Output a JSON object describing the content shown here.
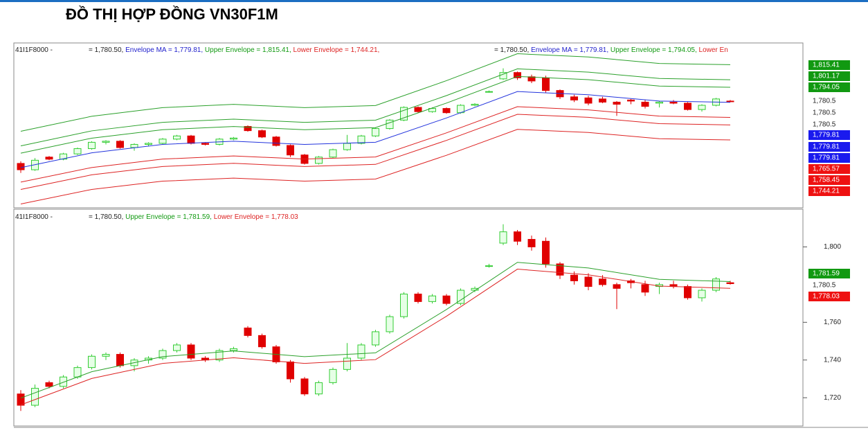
{
  "title": "ĐỒ THỊ HỢP ĐỒNG VN30F1M",
  "chart_data": [
    {
      "type": "candlestick",
      "header": [
        {
          "text": "41I1F8000 -",
          "color": "#222222"
        },
        {
          "text": "= 1,780.50, ",
          "color": "#222222"
        },
        {
          "text": "Envelope MA = 1,779.81, ",
          "color": "#2222cc"
        },
        {
          "text": "Upper Envelope = 1,815.41, ",
          "color": "#119911"
        },
        {
          "text": "Lower Envelope = 1,744.21,",
          "color": "#dd2222"
        },
        {
          "text": "= 1,780.50, ",
          "color": "#222222"
        },
        {
          "text": "Envelope MA = 1,779.81, ",
          "color": "#2222cc"
        },
        {
          "text": "Upper Envelope = 1,794.05, ",
          "color": "#119911"
        },
        {
          "text": "Lower En",
          "color": "#dd2222"
        }
      ],
      "ylim": [
        1680,
        1836
      ],
      "series": [
        {
          "color": "#2aa02a",
          "x": [
            0,
            5,
            10,
            15,
            20,
            25,
            30,
            35,
            40,
            45,
            50
          ],
          "values": [
            1752.4,
            1766.6,
            1774.8,
            1777.9,
            1774.8,
            1776.8,
            1800.3,
            1825.8,
            1822.7,
            1816.6,
            1815.41
          ]
        },
        {
          "color": "#2aa02a",
          "x": [
            0,
            5,
            10,
            15,
            20,
            25,
            30,
            35,
            40,
            45,
            50
          ],
          "values": [
            1738.6,
            1752.8,
            1760.9,
            1763.9,
            1760.9,
            1762.9,
            1786.2,
            1811.5,
            1808.4,
            1802.4,
            1801.17
          ]
        },
        {
          "color": "#2aa02a",
          "x": [
            0,
            5,
            10,
            15,
            20,
            25,
            30,
            35,
            40,
            45,
            50
          ],
          "values": [
            1731.7,
            1745.9,
            1753.9,
            1756.9,
            1753.9,
            1755.9,
            1779.1,
            1804.3,
            1801.3,
            1795.2,
            1794.05
          ]
        },
        {
          "color": "#2233dd",
          "x": [
            0,
            5,
            10,
            15,
            20,
            25,
            30,
            35,
            40,
            45,
            50
          ],
          "values": [
            1718,
            1732,
            1740,
            1743,
            1740,
            1742,
            1765,
            1790,
            1787,
            1781,
            1779.81
          ]
        },
        {
          "color": "#dd2222",
          "x": [
            0,
            5,
            10,
            15,
            20,
            25,
            30,
            35,
            40,
            45,
            50
          ],
          "values": [
            1704.3,
            1718.1,
            1726.1,
            1729.1,
            1726.1,
            1728.1,
            1750.9,
            1775.7,
            1772.7,
            1766.8,
            1765.57
          ]
        },
        {
          "color": "#dd2222",
          "x": [
            0,
            5,
            10,
            15,
            20,
            25,
            30,
            35,
            40,
            45,
            50
          ],
          "values": [
            1697.4,
            1711.2,
            1719.1,
            1722.1,
            1719.1,
            1721.1,
            1743.8,
            1768.5,
            1765.6,
            1759.6,
            1758.45
          ]
        },
        {
          "color": "#dd2222",
          "x": [
            0,
            5,
            10,
            15,
            20,
            25,
            30,
            35,
            40,
            45,
            50
          ],
          "values": [
            1683.6,
            1697.4,
            1705.2,
            1708.1,
            1705.2,
            1707.2,
            1729.7,
            1754.2,
            1751.3,
            1745.4,
            1744.21
          ]
        }
      ],
      "price_labels": [
        {
          "text": "1,815.41",
          "color": "#119911"
        },
        {
          "text": "1,801.17",
          "color": "#119911"
        },
        {
          "text": "1,794.05",
          "color": "#119911"
        },
        {
          "text": "1,780.5",
          "color": ""
        },
        {
          "text": "1,780.5",
          "color": ""
        },
        {
          "text": "1,780.5",
          "color": ""
        },
        {
          "text": "1,779.81",
          "color": "#1a1aee"
        },
        {
          "text": "1,779.81",
          "color": "#1a1aee"
        },
        {
          "text": "1,779.81",
          "color": "#1a1aee"
        },
        {
          "text": "1,765.57",
          "color": "#ee1111"
        },
        {
          "text": "1,758.45",
          "color": "#ee1111"
        },
        {
          "text": "1,744.21",
          "color": "#ee1111"
        }
      ]
    },
    {
      "type": "candlestick",
      "header": [
        {
          "text": "41I1F8000 -",
          "color": "#222222"
        },
        {
          "text": "= 1,780.50, ",
          "color": "#222222"
        },
        {
          "text": "Upper Envelope = 1,781.59, ",
          "color": "#119911"
        },
        {
          "text": "Lower Envelope = 1,778.03",
          "color": "#dd2222"
        }
      ],
      "ylim": [
        1705,
        1820
      ],
      "yticks": [
        {
          "value": 1720,
          "label": "1,720"
        },
        {
          "value": 1740,
          "label": "1,740"
        },
        {
          "value": 1760,
          "label": "1,760"
        },
        {
          "value": 1800,
          "label": "1,800"
        }
      ],
      "up_color": "#33cc33",
      "down_color": "#e00000",
      "open": [
        1722,
        1716,
        1728,
        1726,
        1731,
        1736,
        1742,
        1743,
        1737,
        1740,
        1741,
        1745,
        1748,
        1741,
        1740,
        1745,
        1757,
        1753,
        1747,
        1739,
        1730,
        1722,
        1728,
        1735,
        1741,
        1748,
        1755,
        1763,
        1775,
        1771,
        1774,
        1770,
        1777,
        1790,
        1802,
        1808,
        1804,
        1803,
        1791,
        1785,
        1784,
        1783,
        1780,
        1782,
        1780,
        1779,
        1780,
        1779,
        1773,
        1777,
        1781
      ],
      "high": [
        1724,
        1727,
        1729,
        1732,
        1737,
        1743,
        1744,
        1744,
        1741,
        1742,
        1746,
        1749,
        1749,
        1742,
        1746,
        1747,
        1758,
        1754,
        1748,
        1740,
        1731,
        1729,
        1736,
        1749,
        1749,
        1756,
        1764,
        1776,
        1776,
        1775,
        1775,
        1778,
        1779,
        1791,
        1812,
        1809,
        1806,
        1805,
        1792,
        1787,
        1786,
        1785,
        1781,
        1783,
        1782,
        1781,
        1782,
        1780,
        1778,
        1784,
        1782
      ],
      "low": [
        1713,
        1715,
        1725,
        1725,
        1730,
        1735,
        1740,
        1736,
        1734,
        1738,
        1740,
        1744,
        1740,
        1739,
        1739,
        1744,
        1752,
        1746,
        1738,
        1728,
        1721,
        1721,
        1727,
        1734,
        1740,
        1747,
        1754,
        1762,
        1770,
        1770,
        1769,
        1769,
        1776,
        1789,
        1801,
        1801,
        1798,
        1789,
        1783,
        1780,
        1777,
        1779,
        1767,
        1778,
        1774,
        1775,
        1778,
        1772,
        1771,
        1776,
        1780
      ],
      "close": [
        1716,
        1725,
        1726,
        1731,
        1736,
        1742,
        1743,
        1737,
        1740,
        1741,
        1745,
        1748,
        1741,
        1740,
        1745,
        1746,
        1753,
        1747,
        1739,
        1730,
        1722,
        1728,
        1735,
        1741,
        1748,
        1755,
        1763,
        1775,
        1771,
        1774,
        1770,
        1777,
        1778,
        1790,
        1808,
        1803,
        1800,
        1791,
        1785,
        1782,
        1779,
        1780,
        1778,
        1781,
        1776,
        1780,
        1779,
        1773,
        1777,
        1783,
        1780.5
      ],
      "series": [
        {
          "color": "#2aa02a",
          "x": [
            0,
            5,
            10,
            15,
            20,
            25,
            30,
            35,
            40,
            45,
            50
          ],
          "values": [
            1719.8,
            1733.8,
            1741.8,
            1744.8,
            1741.8,
            1743.8,
            1766.8,
            1791.8,
            1788.8,
            1782.8,
            1781.59
          ]
        },
        {
          "color": "#dd2222",
          "x": [
            0,
            5,
            10,
            15,
            20,
            25,
            30,
            35,
            40,
            45,
            50
          ],
          "values": [
            1716.2,
            1730.2,
            1738.2,
            1741.2,
            1738.2,
            1740.2,
            1763.2,
            1788.2,
            1785.2,
            1779.2,
            1778.03
          ]
        }
      ],
      "price_labels": [
        {
          "text": "1,781.59",
          "color": "#119911"
        },
        {
          "text": "1,780.5",
          "color": ""
        },
        {
          "text": "1,778.03",
          "color": "#ee1111"
        }
      ]
    }
  ]
}
